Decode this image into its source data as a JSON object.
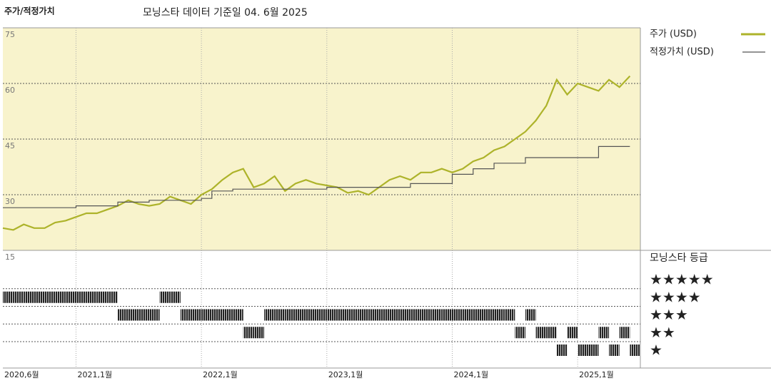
{
  "chart_data": {
    "type": "line",
    "title": "주가/적정가치",
    "subtitle": "모닝스타 데이터 기준일 04. 6월 2025",
    "x": [
      "2020-06",
      "2020-07",
      "2020-08",
      "2020-09",
      "2020-10",
      "2020-11",
      "2020-12",
      "2021-01",
      "2021-02",
      "2021-03",
      "2021-04",
      "2021-05",
      "2021-06",
      "2021-07",
      "2021-08",
      "2021-09",
      "2021-10",
      "2021-11",
      "2021-12",
      "2022-01",
      "2022-02",
      "2022-03",
      "2022-04",
      "2022-05",
      "2022-06",
      "2022-07",
      "2022-08",
      "2022-09",
      "2022-10",
      "2022-11",
      "2022-12",
      "2023-01",
      "2023-02",
      "2023-03",
      "2023-04",
      "2023-05",
      "2023-06",
      "2023-07",
      "2023-08",
      "2023-09",
      "2023-10",
      "2023-11",
      "2023-12",
      "2024-01",
      "2024-02",
      "2024-03",
      "2024-04",
      "2024-05",
      "2024-06",
      "2024-07",
      "2024-08",
      "2024-09",
      "2024-10",
      "2024-11",
      "2024-12",
      "2025-01",
      "2025-02",
      "2025-03",
      "2025-04",
      "2025-05",
      "2025-06"
    ],
    "xlim": [
      "2020-06",
      "2025-07"
    ],
    "xticks": [
      {
        "value": "2020-06",
        "label": "2020,6월"
      },
      {
        "value": "2021-01",
        "label": "2021,1월"
      },
      {
        "value": "2022-01",
        "label": "2022,1월"
      },
      {
        "value": "2023-01",
        "label": "2023,1월"
      },
      {
        "value": "2024-01",
        "label": "2024,1월"
      },
      {
        "value": "2025-01",
        "label": "2025,1월"
      }
    ],
    "ylim": [
      15,
      75
    ],
    "yticks": [
      15,
      30,
      45,
      60,
      75
    ],
    "series": [
      {
        "name": "주가 (USD)",
        "color": "#adb32a",
        "values": [
          21,
          20.5,
          22,
          21,
          21,
          22.5,
          23,
          24,
          25,
          25,
          26,
          27,
          28.5,
          27.5,
          27,
          27.5,
          29.5,
          28.5,
          27.5,
          30,
          31.5,
          34,
          36,
          37,
          32,
          33,
          35,
          31,
          33,
          34,
          33,
          32.5,
          32,
          30.5,
          31,
          30,
          32,
          34,
          35,
          34,
          36,
          36,
          37,
          36,
          37,
          39,
          40,
          42,
          43,
          45,
          47,
          50,
          54,
          61,
          57,
          60,
          59,
          58,
          61,
          59,
          62
        ]
      },
      {
        "name": "적정가치 (USD)",
        "color": "#555555",
        "step": true,
        "values": [
          26.5,
          26.5,
          26.5,
          26.5,
          26.5,
          26.5,
          26.5,
          27,
          27,
          27,
          27,
          28,
          28,
          28,
          28.5,
          28.5,
          28.5,
          28.5,
          28.5,
          29,
          31,
          31,
          31.5,
          31.5,
          31.5,
          31.5,
          31.5,
          31.5,
          31.5,
          31.5,
          31.5,
          32,
          32,
          32,
          32,
          32,
          32,
          32,
          32,
          33,
          33,
          33,
          33,
          35.5,
          35.5,
          37,
          37,
          38.5,
          38.5,
          38.5,
          40,
          40,
          40,
          40,
          40,
          40,
          40,
          43,
          43,
          43,
          43
        ]
      }
    ],
    "ratings": {
      "title": "모닝스타 등급",
      "levels": [
        5,
        4,
        3,
        2,
        1
      ],
      "labels": [
        "★★★★★",
        "★★★★",
        "★★★",
        "★★",
        "★"
      ],
      "values": [
        4,
        4,
        4,
        4,
        4,
        4,
        4,
        4,
        4,
        4,
        4,
        3,
        3,
        3,
        3,
        4,
        4,
        3,
        3,
        3,
        3,
        3,
        3,
        2,
        2,
        3,
        3,
        3,
        3,
        3,
        3,
        3,
        3,
        3,
        3,
        3,
        3,
        3,
        3,
        3,
        3,
        3,
        3,
        3,
        3,
        3,
        3,
        3,
        3,
        2,
        3,
        2,
        2,
        1,
        2,
        1,
        1,
        2,
        1,
        2,
        1
      ]
    }
  }
}
